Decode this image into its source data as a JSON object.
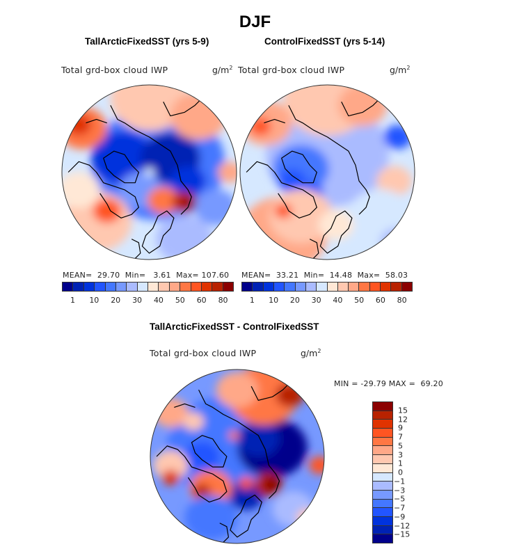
{
  "chart_data": [
    {
      "type": "heatmap",
      "projection": "north-polar-stereographic",
      "title": "TallArcticFixedSST (yrs 5-9)",
      "variable": "Total grd-box cloud IWP",
      "units": "g/m2",
      "stats": {
        "mean_label": "MEAN=",
        "mean": "29.70",
        "min_label": "Min=",
        "min": "3.61",
        "max_label": "Max=",
        "max": "107.60"
      },
      "colorbar": {
        "orientation": "horizontal",
        "tick_labels": [
          "1",
          "10",
          "20",
          "30",
          "40",
          "50",
          "60",
          "80"
        ],
        "colors": [
          "#00008b",
          "#0022b4",
          "#0033dd",
          "#2255ff",
          "#4477ff",
          "#7799ff",
          "#aabbff",
          "#d6e8ff",
          "#ffe8d6",
          "#ffc8b0",
          "#ffa888",
          "#ff7744",
          "#ff5522",
          "#e03300",
          "#b82200",
          "#8b0000"
        ]
      },
      "features": [
        "low IWP (deep blue) over central Arctic, Canadian Archipelago and Siberia",
        "high IWP (dark red) over Kara/Barents sea region near Novaya Zemlya",
        "moderate-high IWP over North Pacific and south Greenland"
      ]
    },
    {
      "type": "heatmap",
      "projection": "north-polar-stereographic",
      "title": "ControlFixedSST (yrs 5-14)",
      "variable": "Total grd-box cloud IWP",
      "units": "g/m2",
      "stats": {
        "mean_label": "MEAN=",
        "mean": "33.21",
        "min_label": "Min=",
        "min": "14.48",
        "max_label": "Max=",
        "max": "58.03"
      },
      "colorbar": {
        "orientation": "horizontal",
        "tick_labels": [
          "1",
          "10",
          "20",
          "30",
          "40",
          "50",
          "60",
          "80"
        ],
        "colors": [
          "#00008b",
          "#0022b4",
          "#0033dd",
          "#2255ff",
          "#4477ff",
          "#7799ff",
          "#aabbff",
          "#d6e8ff",
          "#ffe8d6",
          "#ffc8b0",
          "#ffa888",
          "#ff7744",
          "#ff5522",
          "#e03300",
          "#b82200",
          "#8b0000"
        ]
      },
      "features": [
        "moderate blue over Arctic ocean and Canadian Archipelago",
        "orange-red over North Atlantic south of Greenland and North Pacific"
      ]
    },
    {
      "type": "heatmap",
      "projection": "north-polar-stereographic",
      "title": "TallArcticFixedSST - ControlFixedSST",
      "variable": "Total grd-box cloud IWP",
      "units": "g/m2",
      "stats": {
        "min_label": "MIN =",
        "min": "-29.79",
        "max_label": "MAX =",
        "max": "69.20"
      },
      "colorbar": {
        "orientation": "vertical",
        "tick_labels": [
          "15",
          "12",
          "9",
          "7",
          "5",
          "3",
          "1",
          "0",
          "−1",
          "−3",
          "−5",
          "−7",
          "−9",
          "−12",
          "−15"
        ],
        "colors_top_to_bottom": [
          "#8b0000",
          "#b82200",
          "#e03300",
          "#ff5522",
          "#ff7744",
          "#ffa888",
          "#ffc8b0",
          "#ffe8d6",
          "#d6e8ff",
          "#aabbff",
          "#7799ff",
          "#4477ff",
          "#2255ff",
          "#0033dd",
          "#0022b4",
          "#00008b"
        ]
      },
      "features": [
        "strong negative (dark blue) over Siberia/central Arctic",
        "strong positive (dark red) near Kara Sea",
        "positive over east Asia/Pacific and south Greenland"
      ]
    }
  ],
  "page": {
    "main_title": "DJF",
    "units_base": "g/m",
    "units_exp": "2"
  }
}
